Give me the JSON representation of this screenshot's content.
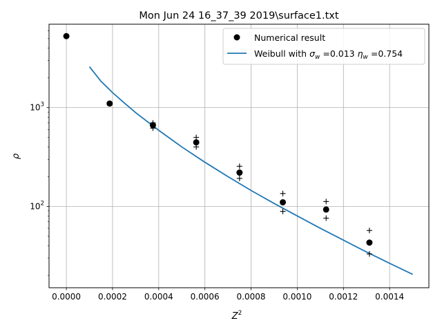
{
  "chart_data": {
    "type": "scatter",
    "title": "Mon Jun 24 16_37_39 2019\\surface1.txt",
    "xlabel": "Z",
    "xlabel_sup": "2",
    "ylabel": "ρ",
    "xlim": [
      -7.5e-05,
      0.00157
    ],
    "ylim": [
      15.0,
      7000.0
    ],
    "yscale": "log",
    "grid": true,
    "legend_position": "top-right",
    "x_ticks": [
      {
        "value": 0.0,
        "label": "0.0000"
      },
      {
        "value": 0.0002,
        "label": "0.0002"
      },
      {
        "value": 0.0004,
        "label": "0.0004"
      },
      {
        "value": 0.0006,
        "label": "0.0006"
      },
      {
        "value": 0.0008,
        "label": "0.0008"
      },
      {
        "value": 0.001,
        "label": "0.0010"
      },
      {
        "value": 0.0012,
        "label": "0.0012"
      },
      {
        "value": 0.0014,
        "label": "0.0014"
      }
    ],
    "y_ticks": [
      {
        "value": 100,
        "base": "10",
        "exp": "2"
      },
      {
        "value": 1000,
        "base": "10",
        "exp": "3"
      }
    ],
    "series": [
      {
        "name": "Numerical result",
        "kind": "points",
        "color": "#000000",
        "x": [
          0.0,
          0.0001875,
          0.000375,
          0.0005625,
          0.00075,
          0.0009375,
          0.001125,
          0.0013125
        ],
        "y": [
          5300,
          1100,
          665,
          445,
          220,
          110,
          93,
          43
        ],
        "y_upper": [
          5300,
          1100,
          700,
          500,
          255,
          135,
          112,
          57
        ],
        "y_lower": [
          5300,
          1100,
          620,
          400,
          192,
          89,
          76,
          33
        ]
      },
      {
        "name_prefix": "Weibull with ",
        "name_sigma_symbol": "σ",
        "name_sigma_sub": "w",
        "name_sigma_value": " =0.013 ",
        "name_eta_symbol": "η",
        "name_eta_sub": "w",
        "name_eta_value": " =0.754",
        "kind": "line",
        "color": "#1f77b4",
        "x": [
          0.0001,
          0.00015,
          0.0002,
          0.00025,
          0.0003,
          0.0004,
          0.0005,
          0.0006,
          0.0007,
          0.0008,
          0.0009,
          0.001,
          0.0011,
          0.0012,
          0.0013,
          0.0014,
          0.0015
        ],
        "y": [
          2600,
          1850,
          1420,
          1120,
          890,
          590,
          400,
          280,
          200,
          145,
          107,
          80,
          60,
          45.5,
          34.5,
          26.5,
          20.5
        ]
      }
    ]
  }
}
